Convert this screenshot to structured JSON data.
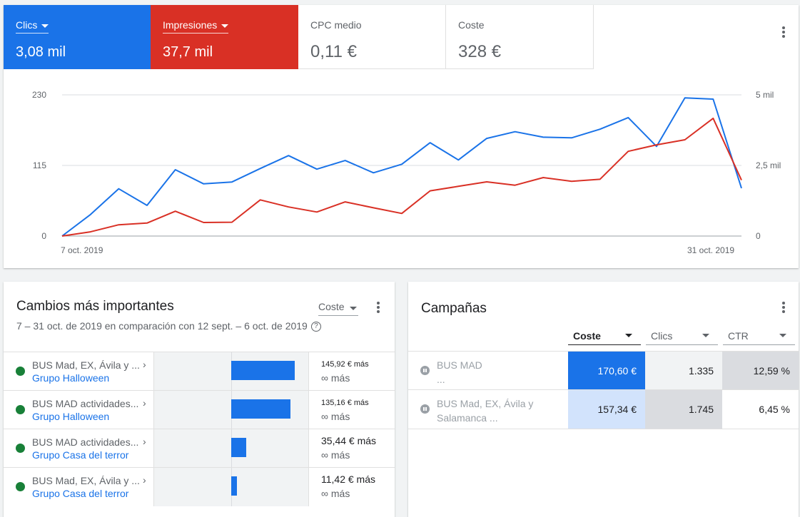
{
  "metrics": {
    "clicks": {
      "label": "Clics",
      "value": "3,08 mil",
      "color": "#1a73e8"
    },
    "impressions": {
      "label": "Impresiones",
      "value": "37,7 mil",
      "color": "#d93025"
    },
    "cpc": {
      "label": "CPC medio",
      "value": "0,11 €"
    },
    "cost": {
      "label": "Coste",
      "value": "328 €"
    }
  },
  "chart_data": {
    "type": "line",
    "x_labels_shown": [
      "7 oct. 2019",
      "31 oct. 2019"
    ],
    "left_axis": {
      "ticks": [
        "0",
        "115",
        "230"
      ],
      "ylim": [
        0,
        230
      ]
    },
    "right_axis": {
      "ticks": [
        "0",
        "2,5 mil",
        "5 mil"
      ],
      "ylim": [
        0,
        5000
      ]
    },
    "series": [
      {
        "name": "Clics",
        "color": "#1a73e8",
        "axis": "left",
        "values": [
          0,
          35,
          77,
          50,
          108,
          85,
          88,
          110,
          131,
          109,
          123,
          103,
          117,
          152,
          124,
          159,
          170,
          161,
          160,
          174,
          193,
          146,
          225,
          223,
          78
        ]
      },
      {
        "name": "Impresiones",
        "color": "#d93025",
        "axis": "right",
        "values": [
          0,
          150,
          400,
          460,
          880,
          480,
          490,
          1280,
          1030,
          850,
          1210,
          1000,
          800,
          1600,
          1760,
          1920,
          1800,
          2070,
          1940,
          2010,
          3000,
          3230,
          3410,
          4170,
          1980
        ]
      }
    ]
  },
  "changes": {
    "title": "Cambios más importantes",
    "subtitle": "7 – 31 oct. de 2019 en comparación con 12 sept. – 6 oct. de 2019",
    "metric": "Coste",
    "rows": [
      {
        "campaign": "BUS Mad, EX, Ávila y ...",
        "group": "Grupo Halloween",
        "amount": "145,92 € más",
        "pct": "∞ más",
        "fraction": 1.0
      },
      {
        "campaign": "BUS MAD actividades...",
        "group": "Grupo Halloween",
        "amount": "135,16 € más",
        "pct": "∞ más",
        "fraction": 0.93
      },
      {
        "campaign": "BUS MAD actividades...",
        "group": "Grupo Casa del terror",
        "amount": "35,44 € más",
        "pct": "∞ más",
        "fraction": 0.24
      },
      {
        "campaign": "BUS Mad, EX, Ávila y ...",
        "group": "Grupo Casa del terror",
        "amount": "11,42 € más",
        "pct": "∞ más",
        "fraction": 0.08
      }
    ]
  },
  "campaigns": {
    "title": "Campañas",
    "columns": [
      "Coste",
      "Clics",
      "CTR"
    ],
    "rows": [
      {
        "name_line1": "BUS MAD",
        "name_line2": "...",
        "cost": "170,60 €",
        "clicks": "1.335",
        "ctr": "12,59 %"
      },
      {
        "name_line1": "BUS Mad, EX, Ávila y",
        "name_line2": "Salamanca ...",
        "cost": "157,34 €",
        "clicks": "1.745",
        "ctr": "6,45 %"
      }
    ]
  }
}
